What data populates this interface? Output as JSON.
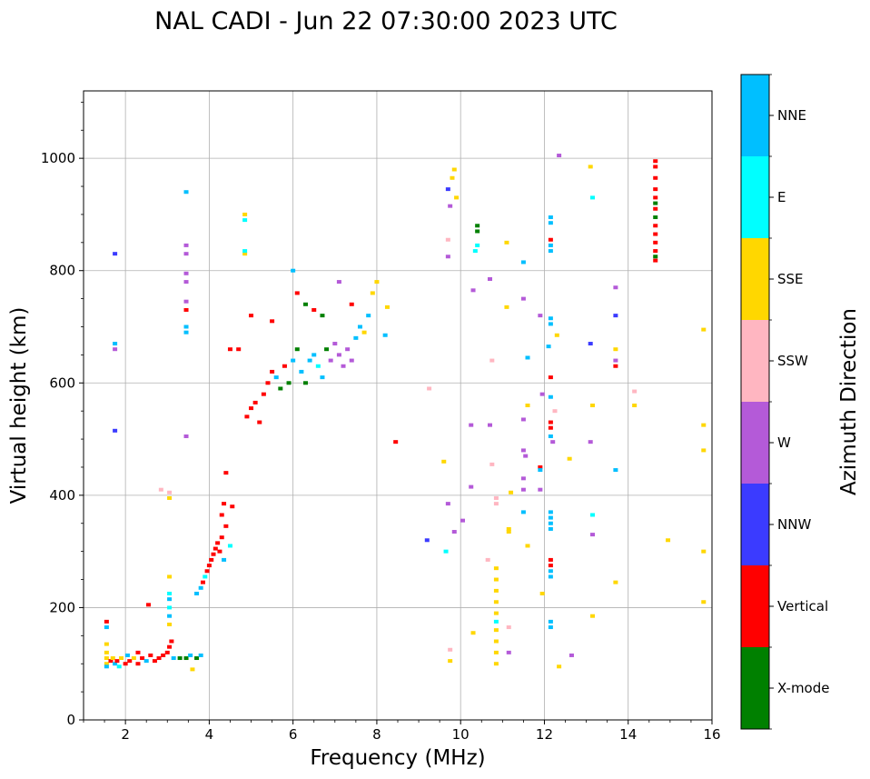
{
  "chart_data": {
    "type": "scatter",
    "title": "NAL CADI - Jun 22 07:30:00 2023 UTC",
    "xlabel": "Frequency (MHz)",
    "ylabel": "Virtual height (km)",
    "xlim": [
      1,
      16
    ],
    "ylim": [
      0,
      1120
    ],
    "xticks": [
      2,
      4,
      6,
      8,
      10,
      12,
      14,
      16
    ],
    "yticks": [
      0,
      200,
      400,
      600,
      800,
      1000
    ],
    "grid": true,
    "colorbar": {
      "label": "Azimuth Direction",
      "categories": [
        {
          "name": "X-mode",
          "color": "#008000"
        },
        {
          "name": "Vertical",
          "color": "#ff0000"
        },
        {
          "name": "NNW",
          "color": "#3b3bff"
        },
        {
          "name": "W",
          "color": "#b45ad8"
        },
        {
          "name": "SSW",
          "color": "#ffb6c1"
        },
        {
          "name": "SSE",
          "color": "#ffd700"
        },
        {
          "name": "E",
          "color": "#00ffff"
        },
        {
          "name": "NNE",
          "color": "#00bfff"
        }
      ]
    },
    "points": [
      [
        1.55,
        175,
        "Vertical"
      ],
      [
        1.55,
        165,
        "NNE"
      ],
      [
        1.55,
        135,
        "SSE"
      ],
      [
        1.55,
        120,
        "SSE"
      ],
      [
        1.55,
        110,
        "SSE"
      ],
      [
        1.55,
        100,
        "SSE"
      ],
      [
        1.55,
        95,
        "NNE"
      ],
      [
        1.65,
        105,
        "Vertical"
      ],
      [
        1.7,
        110,
        "SSE"
      ],
      [
        1.75,
        100,
        "NNE"
      ],
      [
        1.8,
        105,
        "Vertical"
      ],
      [
        1.85,
        95,
        "E"
      ],
      [
        1.9,
        110,
        "SSE"
      ],
      [
        2.0,
        100,
        "Vertical"
      ],
      [
        2.05,
        115,
        "NNE"
      ],
      [
        2.1,
        105,
        "Vertical"
      ],
      [
        2.2,
        110,
        "SSE"
      ],
      [
        2.3,
        100,
        "Vertical"
      ],
      [
        2.4,
        110,
        "Vertical"
      ],
      [
        2.5,
        105,
        "NNE"
      ],
      [
        2.6,
        115,
        "Vertical"
      ],
      [
        2.7,
        105,
        "Vertical"
      ],
      [
        2.8,
        110,
        "Vertical"
      ],
      [
        2.9,
        115,
        "Vertical"
      ],
      [
        3.0,
        120,
        "Vertical"
      ],
      [
        3.05,
        130,
        "Vertical"
      ],
      [
        3.1,
        140,
        "Vertical"
      ],
      [
        3.15,
        110,
        "NNE"
      ],
      [
        3.3,
        110,
        "X-mode"
      ],
      [
        3.45,
        110,
        "X-mode"
      ],
      [
        3.55,
        115,
        "NNE"
      ],
      [
        3.7,
        110,
        "X-mode"
      ],
      [
        3.8,
        115,
        "NNE"
      ],
      [
        3.6,
        90,
        "SSE"
      ],
      [
        1.75,
        660,
        "W"
      ],
      [
        1.75,
        670,
        "NNE"
      ],
      [
        3.05,
        170,
        "SSE"
      ],
      [
        3.05,
        185,
        "NNE"
      ],
      [
        3.05,
        200,
        "E"
      ],
      [
        3.05,
        215,
        "NNE"
      ],
      [
        3.05,
        225,
        "E"
      ],
      [
        3.05,
        255,
        "SSE"
      ],
      [
        3.05,
        405,
        "SSW"
      ],
      [
        3.05,
        395,
        "SSE"
      ],
      [
        2.85,
        410,
        "SSW"
      ],
      [
        3.45,
        690,
        "NNE"
      ],
      [
        3.45,
        700,
        "NNE"
      ],
      [
        3.45,
        730,
        "Vertical"
      ],
      [
        3.45,
        745,
        "W"
      ],
      [
        3.45,
        780,
        "W"
      ],
      [
        3.45,
        795,
        "W"
      ],
      [
        3.45,
        830,
        "W"
      ],
      [
        3.45,
        845,
        "W"
      ],
      [
        3.45,
        940,
        "NNE"
      ],
      [
        3.45,
        505,
        "W"
      ],
      [
        3.7,
        225,
        "NNE"
      ],
      [
        3.8,
        235,
        "NNE"
      ],
      [
        3.85,
        245,
        "Vertical"
      ],
      [
        3.9,
        255,
        "E"
      ],
      [
        3.95,
        265,
        "Vertical"
      ],
      [
        4.0,
        275,
        "Vertical"
      ],
      [
        4.05,
        285,
        "Vertical"
      ],
      [
        4.1,
        295,
        "Vertical"
      ],
      [
        4.15,
        305,
        "Vertical"
      ],
      [
        4.2,
        315,
        "Vertical"
      ],
      [
        4.25,
        300,
        "Vertical"
      ],
      [
        4.3,
        325,
        "Vertical"
      ],
      [
        4.35,
        285,
        "NNE"
      ],
      [
        4.4,
        345,
        "Vertical"
      ],
      [
        4.3,
        365,
        "Vertical"
      ],
      [
        4.35,
        385,
        "Vertical"
      ],
      [
        4.55,
        380,
        "Vertical"
      ],
      [
        4.4,
        440,
        "Vertical"
      ],
      [
        4.5,
        310,
        "E"
      ],
      [
        4.85,
        900,
        "SSE"
      ],
      [
        4.85,
        890,
        "E"
      ],
      [
        4.85,
        830,
        "SSE"
      ],
      [
        4.85,
        835,
        "E"
      ],
      [
        4.9,
        540,
        "Vertical"
      ],
      [
        5.0,
        555,
        "Vertical"
      ],
      [
        5.1,
        565,
        "Vertical"
      ],
      [
        5.2,
        530,
        "Vertical"
      ],
      [
        5.3,
        580,
        "Vertical"
      ],
      [
        5.4,
        600,
        "Vertical"
      ],
      [
        5.5,
        620,
        "Vertical"
      ],
      [
        5.6,
        610,
        "NNE"
      ],
      [
        5.7,
        590,
        "X-mode"
      ],
      [
        5.8,
        630,
        "Vertical"
      ],
      [
        5.9,
        600,
        "X-mode"
      ],
      [
        6.0,
        640,
        "NNE"
      ],
      [
        6.1,
        660,
        "X-mode"
      ],
      [
        6.2,
        620,
        "NNE"
      ],
      [
        6.3,
        600,
        "X-mode"
      ],
      [
        6.4,
        640,
        "NNE"
      ],
      [
        6.5,
        650,
        "NNE"
      ],
      [
        6.6,
        630,
        "E"
      ],
      [
        6.7,
        610,
        "NNE"
      ],
      [
        6.8,
        660,
        "X-mode"
      ],
      [
        6.9,
        640,
        "W"
      ],
      [
        7.0,
        670,
        "W"
      ],
      [
        7.1,
        650,
        "W"
      ],
      [
        7.2,
        630,
        "W"
      ],
      [
        7.3,
        660,
        "W"
      ],
      [
        7.4,
        640,
        "W"
      ],
      [
        7.5,
        680,
        "NNE"
      ],
      [
        7.6,
        700,
        "NNE"
      ],
      [
        7.7,
        690,
        "SSE"
      ],
      [
        7.8,
        720,
        "NNE"
      ],
      [
        7.9,
        760,
        "SSE"
      ],
      [
        8.0,
        780,
        "SSE"
      ],
      [
        8.25,
        735,
        "SSE"
      ],
      [
        8.2,
        685,
        "NNE"
      ],
      [
        5.0,
        720,
        "Vertical"
      ],
      [
        5.5,
        710,
        "Vertical"
      ],
      [
        6.0,
        800,
        "NNE"
      ],
      [
        6.1,
        760,
        "Vertical"
      ],
      [
        6.3,
        740,
        "X-mode"
      ],
      [
        6.5,
        730,
        "Vertical"
      ],
      [
        6.7,
        720,
        "X-mode"
      ],
      [
        7.4,
        740,
        "Vertical"
      ],
      [
        7.1,
        780,
        "W"
      ],
      [
        4.5,
        660,
        "Vertical"
      ],
      [
        4.7,
        660,
        "Vertical"
      ],
      [
        9.7,
        945,
        "NNW"
      ],
      [
        9.75,
        915,
        "W"
      ],
      [
        9.85,
        980,
        "SSE"
      ],
      [
        9.8,
        965,
        "SSE"
      ],
      [
        9.9,
        930,
        "SSE"
      ],
      [
        10.4,
        880,
        "X-mode"
      ],
      [
        10.4,
        870,
        "X-mode"
      ],
      [
        10.4,
        845,
        "E"
      ],
      [
        10.35,
        835,
        "E"
      ],
      [
        9.7,
        855,
        "SSW"
      ],
      [
        9.7,
        825,
        "W"
      ],
      [
        10.7,
        785,
        "W"
      ],
      [
        10.3,
        765,
        "W"
      ],
      [
        11.1,
        850,
        "SSE"
      ],
      [
        11.5,
        815,
        "NNE"
      ],
      [
        11.1,
        735,
        "SSE"
      ],
      [
        11.5,
        750,
        "W"
      ],
      [
        11.9,
        720,
        "W"
      ],
      [
        12.15,
        715,
        "NNE"
      ],
      [
        12.15,
        705,
        "NNE"
      ],
      [
        12.3,
        685,
        "SSE"
      ],
      [
        12.1,
        665,
        "NNE"
      ],
      [
        12.15,
        895,
        "NNE"
      ],
      [
        12.15,
        885,
        "NNE"
      ],
      [
        12.15,
        855,
        "Vertical"
      ],
      [
        12.15,
        845,
        "NNE"
      ],
      [
        12.15,
        835,
        "NNE"
      ],
      [
        12.35,
        1005,
        "W"
      ],
      [
        13.1,
        985,
        "SSE"
      ],
      [
        13.15,
        930,
        "E"
      ],
      [
        13.1,
        670,
        "NNW"
      ],
      [
        13.7,
        770,
        "W"
      ],
      [
        13.7,
        720,
        "NNW"
      ],
      [
        13.7,
        660,
        "SSE"
      ],
      [
        13.7,
        640,
        "W"
      ],
      [
        13.7,
        630,
        "Vertical"
      ],
      [
        14.15,
        585,
        "SSW"
      ],
      [
        14.15,
        560,
        "SSE"
      ],
      [
        13.15,
        560,
        "SSE"
      ],
      [
        12.15,
        610,
        "Vertical"
      ],
      [
        12.15,
        575,
        "NNE"
      ],
      [
        11.95,
        580,
        "W"
      ],
      [
        12.25,
        550,
        "SSW"
      ],
      [
        12.15,
        530,
        "Vertical"
      ],
      [
        12.15,
        520,
        "Vertical"
      ],
      [
        12.15,
        505,
        "NNE"
      ],
      [
        12.2,
        495,
        "W"
      ],
      [
        12.6,
        465,
        "SSE"
      ],
      [
        11.5,
        535,
        "W"
      ],
      [
        11.5,
        480,
        "W"
      ],
      [
        11.55,
        470,
        "W"
      ],
      [
        11.5,
        430,
        "W"
      ],
      [
        11.9,
        450,
        "Vertical"
      ],
      [
        11.9,
        445,
        "NNE"
      ],
      [
        11.5,
        410,
        "W"
      ],
      [
        11.9,
        410,
        "W"
      ],
      [
        11.2,
        405,
        "SSE"
      ],
      [
        10.25,
        525,
        "W"
      ],
      [
        10.7,
        525,
        "W"
      ],
      [
        10.75,
        455,
        "SSW"
      ],
      [
        10.25,
        415,
        "W"
      ],
      [
        11.5,
        370,
        "NNE"
      ],
      [
        11.6,
        645,
        "NNE"
      ],
      [
        11.6,
        560,
        "SSE"
      ],
      [
        10.75,
        640,
        "SSW"
      ],
      [
        9.25,
        590,
        "SSW"
      ],
      [
        8.45,
        495,
        "Vertical"
      ],
      [
        9.6,
        460,
        "SSE"
      ],
      [
        9.7,
        385,
        "W"
      ],
      [
        10.05,
        355,
        "W"
      ],
      [
        9.85,
        335,
        "W"
      ],
      [
        9.2,
        320,
        "NNW"
      ],
      [
        9.65,
        300,
        "E"
      ],
      [
        10.85,
        395,
        "SSW"
      ],
      [
        10.85,
        385,
        "SSW"
      ],
      [
        11.15,
        340,
        "SSE"
      ],
      [
        11.15,
        335,
        "SSE"
      ],
      [
        11.6,
        310,
        "SSE"
      ],
      [
        11.95,
        225,
        "SSE"
      ],
      [
        12.15,
        370,
        "NNE"
      ],
      [
        12.15,
        360,
        "NNE"
      ],
      [
        12.15,
        350,
        "NNE"
      ],
      [
        12.15,
        340,
        "NNE"
      ],
      [
        12.15,
        285,
        "Vertical"
      ],
      [
        12.15,
        275,
        "Vertical"
      ],
      [
        12.15,
        265,
        "NNE"
      ],
      [
        12.15,
        255,
        "NNE"
      ],
      [
        12.15,
        175,
        "NNE"
      ],
      [
        12.15,
        165,
        "NNE"
      ],
      [
        12.35,
        95,
        "SSE"
      ],
      [
        12.65,
        115,
        "W"
      ],
      [
        13.15,
        365,
        "E"
      ],
      [
        13.15,
        330,
        "W"
      ],
      [
        13.15,
        185,
        "SSE"
      ],
      [
        13.1,
        495,
        "W"
      ],
      [
        13.7,
        445,
        "NNE"
      ],
      [
        13.7,
        245,
        "SSE"
      ],
      [
        14.95,
        320,
        "SSE"
      ],
      [
        15.8,
        695,
        "SSE"
      ],
      [
        15.8,
        525,
        "SSE"
      ],
      [
        15.8,
        480,
        "SSE"
      ],
      [
        15.8,
        300,
        "SSE"
      ],
      [
        15.8,
        210,
        "SSE"
      ],
      [
        10.65,
        285,
        "SSW"
      ],
      [
        10.3,
        155,
        "SSE"
      ],
      [
        11.15,
        165,
        "SSW"
      ],
      [
        11.15,
        120,
        "W"
      ],
      [
        9.75,
        125,
        "SSW"
      ],
      [
        9.75,
        105,
        "SSE"
      ],
      [
        10.85,
        270,
        "SSE"
      ],
      [
        10.85,
        250,
        "SSE"
      ],
      [
        10.85,
        230,
        "SSE"
      ],
      [
        10.85,
        210,
        "SSE"
      ],
      [
        10.85,
        190,
        "SSE"
      ],
      [
        10.85,
        175,
        "E"
      ],
      [
        10.85,
        160,
        "SSE"
      ],
      [
        10.85,
        140,
        "SSE"
      ],
      [
        10.85,
        120,
        "SSE"
      ],
      [
        10.85,
        100,
        "SSE"
      ],
      [
        14.65,
        995,
        "Vertical"
      ],
      [
        14.65,
        985,
        "Vertical"
      ],
      [
        14.65,
        965,
        "Vertical"
      ],
      [
        14.65,
        945,
        "Vertical"
      ],
      [
        14.65,
        930,
        "Vertical"
      ],
      [
        14.65,
        920,
        "X-mode"
      ],
      [
        14.65,
        910,
        "Vertical"
      ],
      [
        14.65,
        895,
        "X-mode"
      ],
      [
        14.65,
        880,
        "Vertical"
      ],
      [
        14.65,
        865,
        "Vertical"
      ],
      [
        14.65,
        850,
        "Vertical"
      ],
      [
        14.65,
        835,
        "Vertical"
      ],
      [
        14.65,
        825,
        "X-mode"
      ],
      [
        14.65,
        818,
        "Vertical"
      ],
      [
        1.75,
        830,
        "NNW"
      ],
      [
        1.75,
        515,
        "NNW"
      ],
      [
        2.55,
        205,
        "Vertical"
      ],
      [
        2.3,
        120,
        "Vertical"
      ]
    ]
  }
}
